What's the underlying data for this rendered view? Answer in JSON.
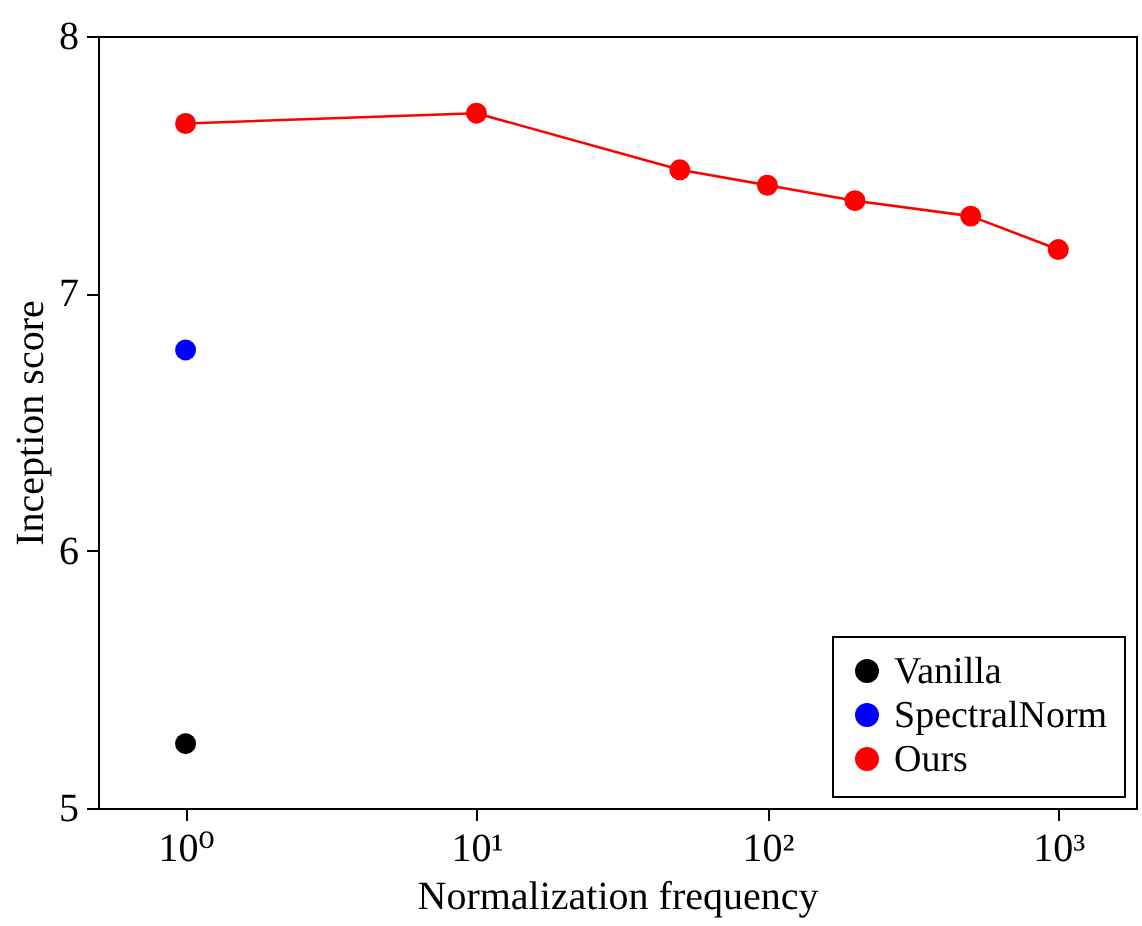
{
  "chart_data": {
    "type": "line",
    "xlabel": "Normalization frequency",
    "ylabel": "Inception score",
    "log": "x",
    "xlim": [
      0.5,
      1850
    ],
    "xticks": [
      {
        "value": 1,
        "label": "10⁰"
      },
      {
        "value": 10,
        "label": "10¹"
      },
      {
        "value": 100,
        "label": "10²"
      },
      {
        "value": 1000,
        "label": "10³"
      }
    ],
    "ylim": [
      5,
      8
    ],
    "yticks": [
      5,
      6,
      7,
      8
    ],
    "grid": false,
    "legend": "bottom right",
    "marker": "circle",
    "line_style": "solid",
    "series": [
      {
        "name": "Vanilla",
        "color": "#000000",
        "x": [
          1
        ],
        "values": [
          5.25
        ]
      },
      {
        "name": "SpectralNorm",
        "color": "#0000ff",
        "x": [
          1
        ],
        "values": [
          6.78
        ]
      },
      {
        "name": "Ours",
        "color": "#ff0000",
        "x": [
          1,
          10,
          50,
          100,
          200,
          500,
          1000
        ],
        "values": [
          7.66,
          7.7,
          7.48,
          7.42,
          7.36,
          7.3,
          7.17
        ]
      }
    ]
  }
}
